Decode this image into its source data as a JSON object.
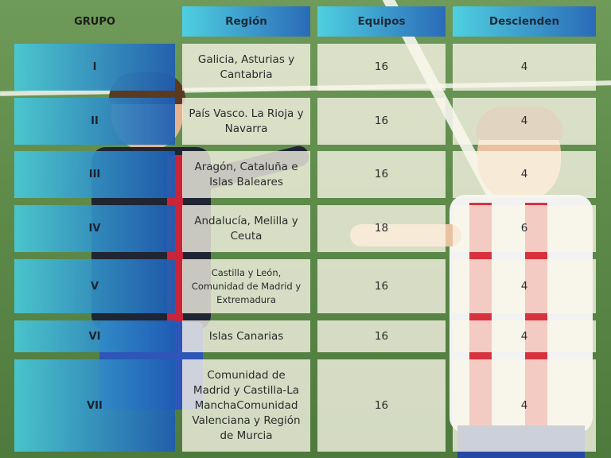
{
  "header": {
    "grupo": "GRUPO",
    "region": "Región",
    "equipos": "Equipos",
    "descienden": "Descienden"
  },
  "rows": [
    {
      "grupo": "I",
      "region": "Galicia, Asturias y Cantabria",
      "equipos": "16",
      "descienden": "4"
    },
    {
      "grupo": "II",
      "region": "País Vasco. La Rioja y Navarra",
      "equipos": "16",
      "descienden": "4"
    },
    {
      "grupo": "III",
      "region": "Aragón, Cataluña e Islas Baleares",
      "equipos": "16",
      "descienden": "4"
    },
    {
      "grupo": "IV",
      "region": "Andalucía, Melilla y Ceuta",
      "equipos": "18",
      "descienden": "6"
    },
    {
      "grupo": "V",
      "region": "Castilla y León, Comunidad de Madrid y Extremadura",
      "equipos": "16",
      "descienden": "4"
    },
    {
      "grupo": "VI",
      "region": "Islas Canarias",
      "equipos": "16",
      "descienden": "4"
    },
    {
      "grupo": "VII",
      "region": "Comunidad de Madrid y Castilla-La ManchaComunidad Valenciana y Región de Murcia",
      "equipos": "16",
      "descienden": "4"
    }
  ]
}
